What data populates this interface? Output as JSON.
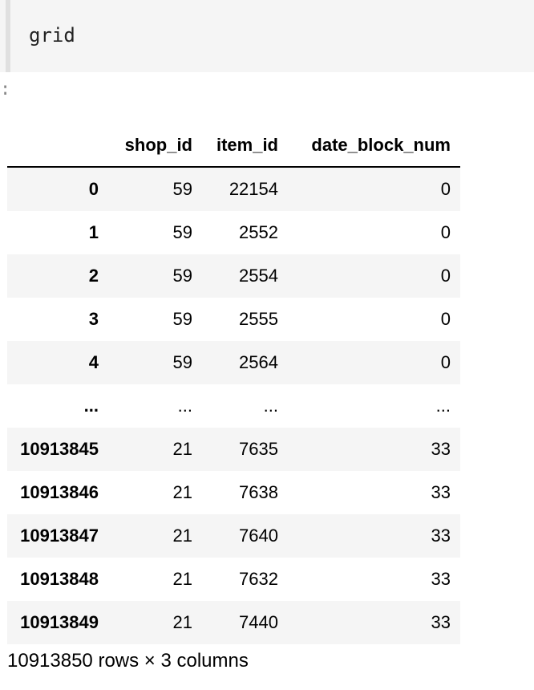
{
  "code_cell": {
    "source": "grid"
  },
  "output_prompt": ":",
  "dataframe": {
    "columns": [
      "",
      "shop_id",
      "item_id",
      "date_block_num"
    ],
    "rows": [
      {
        "index": "0",
        "values": [
          "59",
          "22154",
          "0"
        ]
      },
      {
        "index": "1",
        "values": [
          "59",
          "2552",
          "0"
        ]
      },
      {
        "index": "2",
        "values": [
          "59",
          "2554",
          "0"
        ]
      },
      {
        "index": "3",
        "values": [
          "59",
          "2555",
          "0"
        ]
      },
      {
        "index": "4",
        "values": [
          "59",
          "2564",
          "0"
        ]
      },
      {
        "index": "...",
        "values": [
          "...",
          "...",
          "..."
        ]
      },
      {
        "index": "10913845",
        "values": [
          "21",
          "7635",
          "33"
        ]
      },
      {
        "index": "10913846",
        "values": [
          "21",
          "7638",
          "33"
        ]
      },
      {
        "index": "10913847",
        "values": [
          "21",
          "7640",
          "33"
        ]
      },
      {
        "index": "10913848",
        "values": [
          "21",
          "7632",
          "33"
        ]
      },
      {
        "index": "10913849",
        "values": [
          "21",
          "7440",
          "33"
        ]
      }
    ],
    "shape_text": "10913850 rows × 3 columns"
  }
}
